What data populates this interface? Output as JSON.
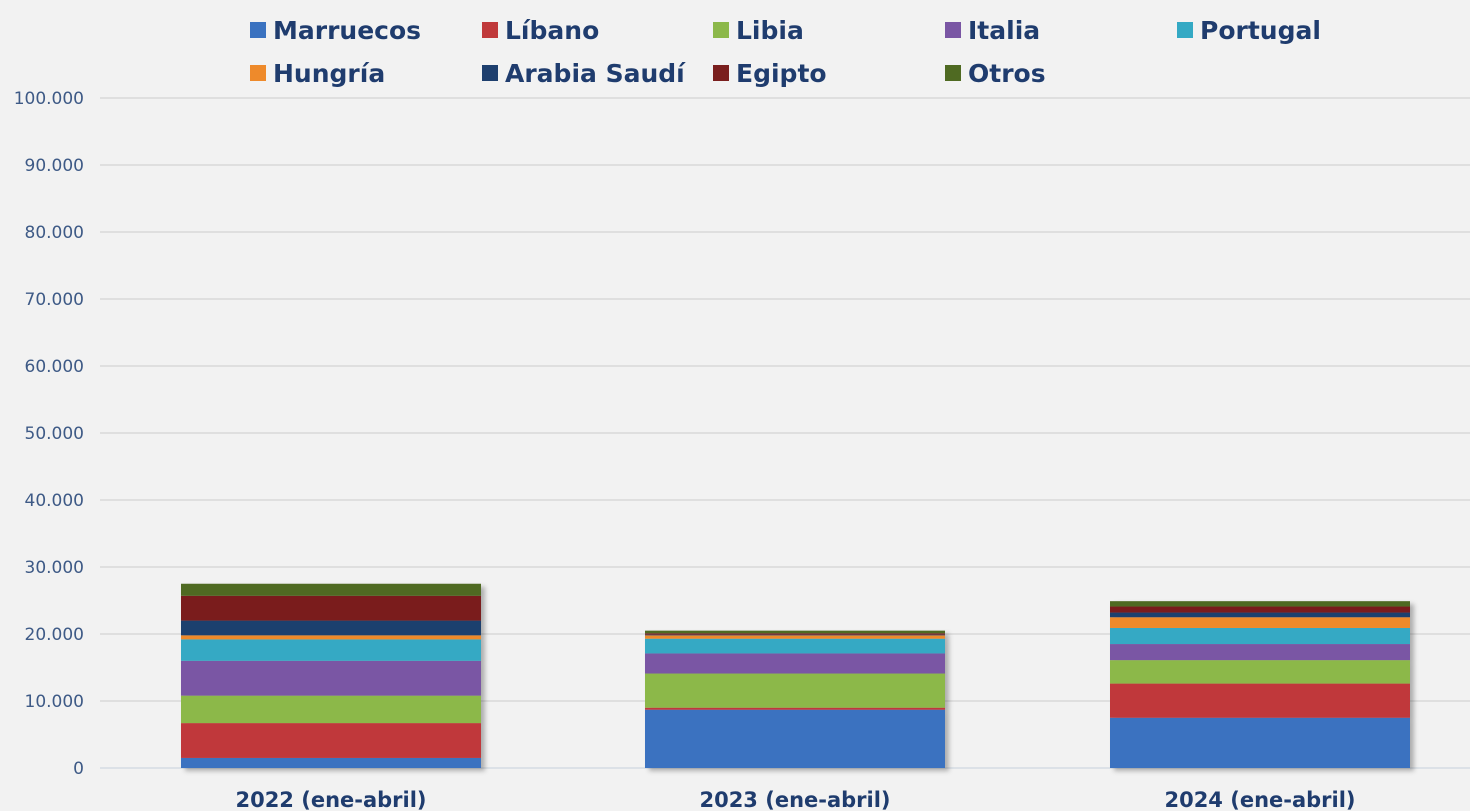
{
  "chart_data": {
    "type": "bar",
    "stacked": true,
    "categories": [
      "2022 (ene-abril)",
      "2023 (ene-abril)",
      "2024 (ene-abril)"
    ],
    "series": [
      {
        "name": "Marruecos",
        "color": "#3a72c0",
        "values": [
          1500,
          8700,
          7500
        ]
      },
      {
        "name": "Líbano",
        "color": "#c0393b",
        "values": [
          5200,
          300,
          5100
        ]
      },
      {
        "name": "Libia",
        "color": "#8cb84a",
        "values": [
          4100,
          5100,
          3500
        ]
      },
      {
        "name": "Italia",
        "color": "#7a56a4",
        "values": [
          5200,
          3000,
          2400
        ]
      },
      {
        "name": "Portugal",
        "color": "#34a9c4",
        "values": [
          3200,
          2200,
          2400
        ]
      },
      {
        "name": "Hungría",
        "color": "#ee8a2b",
        "values": [
          600,
          500,
          1600
        ]
      },
      {
        "name": "Arabia Saudí",
        "color": "#1e3f6e",
        "values": [
          2200,
          100,
          700
        ]
      },
      {
        "name": "Egipto",
        "color": "#7a1f1e",
        "values": [
          3700,
          200,
          900
        ]
      },
      {
        "name": "Otros",
        "color": "#4f6a22",
        "values": [
          1800,
          400,
          800
        ]
      }
    ],
    "yticks": [
      "0",
      "10.000",
      "20.000",
      "30.000",
      "40.000",
      "50.000",
      "60.000",
      "70.000",
      "80.000",
      "90.000",
      "100.000"
    ],
    "ylim": [
      0,
      100000
    ],
    "grid": true,
    "legend_position": "top"
  }
}
